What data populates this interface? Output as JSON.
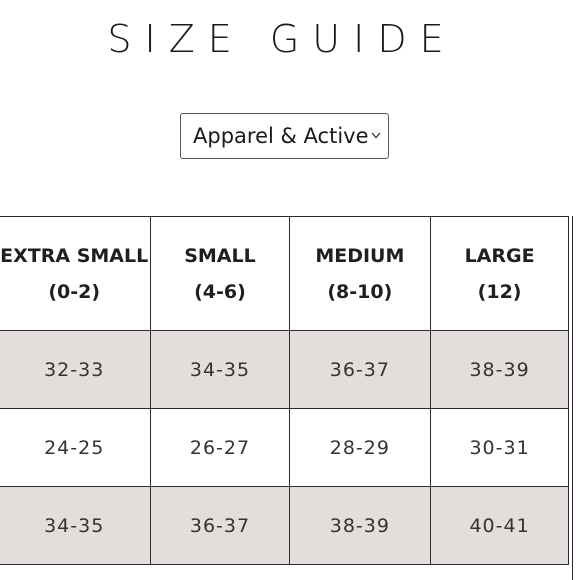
{
  "title": "SIZE GUIDE",
  "category_select": {
    "selected": "Apparel & Active"
  },
  "table": {
    "headers": [
      {
        "line1": "EXTRA SMALL",
        "line2": "(0-2)"
      },
      {
        "line1": "SMALL",
        "line2": "(4-6)"
      },
      {
        "line1": "MEDIUM",
        "line2": "(8-10)"
      },
      {
        "line1": "LARGE",
        "line2": "(12)"
      }
    ],
    "rows": [
      {
        "shaded": true,
        "cells": [
          "32-33",
          "34-35",
          "36-37",
          "38-39"
        ]
      },
      {
        "shaded": false,
        "cells": [
          "24-25",
          "26-27",
          "28-29",
          "30-31"
        ]
      },
      {
        "shaded": true,
        "cells": [
          "34-35",
          "36-37",
          "38-39",
          "40-41"
        ]
      }
    ]
  },
  "colors": {
    "shaded_row": "#e3dedb",
    "border": "#2a2a2a",
    "text": "#1f1f1f"
  }
}
